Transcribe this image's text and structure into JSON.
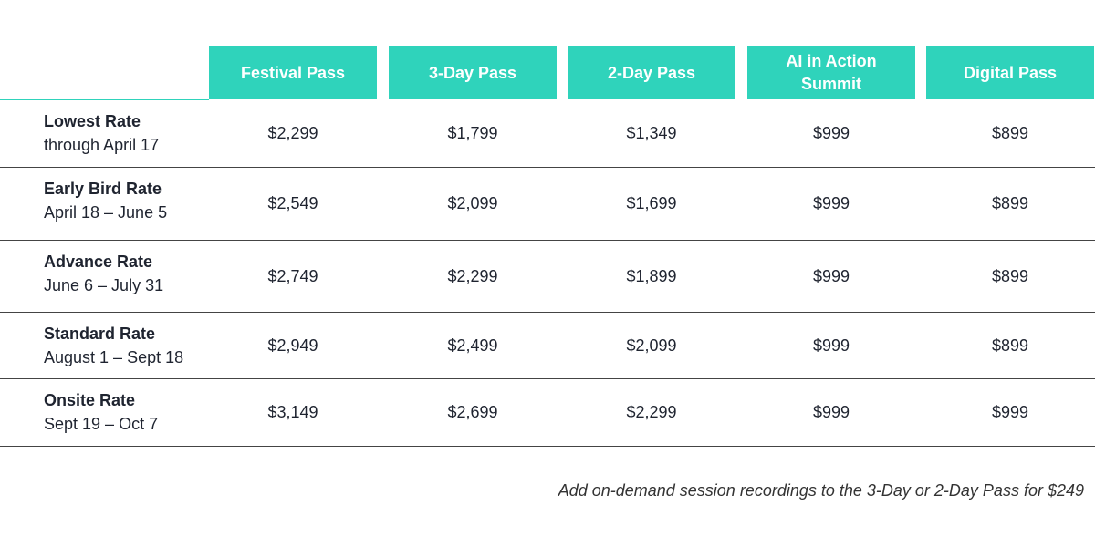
{
  "table": {
    "columns": [
      "Festival Pass",
      "3-Day Pass",
      "2-Day Pass",
      "AI in Action Summit",
      "Digital Pass"
    ],
    "rows": [
      {
        "name": "Lowest Rate",
        "dates": "through April 17",
        "prices": [
          "$2,299",
          "$1,799",
          "$1,349",
          "$999",
          "$899"
        ]
      },
      {
        "name": "Early Bird Rate",
        "dates": "April 18 – June 5",
        "prices": [
          "$2,549",
          "$2,099",
          "$1,699",
          "$999",
          "$899"
        ]
      },
      {
        "name": "Advance Rate",
        "dates": "June 6 – July 31",
        "prices": [
          "$2,749",
          "$2,299",
          "$1,899",
          "$999",
          "$899"
        ]
      },
      {
        "name": "Standard Rate",
        "dates": "August 1 – Sept 18",
        "prices": [
          "$2,949",
          "$2,499",
          "$2,099",
          "$999",
          "$899"
        ]
      },
      {
        "name": "Onsite Rate",
        "dates": "Sept 19 – Oct 7",
        "prices": [
          "$3,149",
          "$2,699",
          "$2,299",
          "$999",
          "$999"
        ]
      }
    ]
  },
  "footnote": "Add on-demand session recordings to the 3-Day or 2-Day Pass for $249"
}
